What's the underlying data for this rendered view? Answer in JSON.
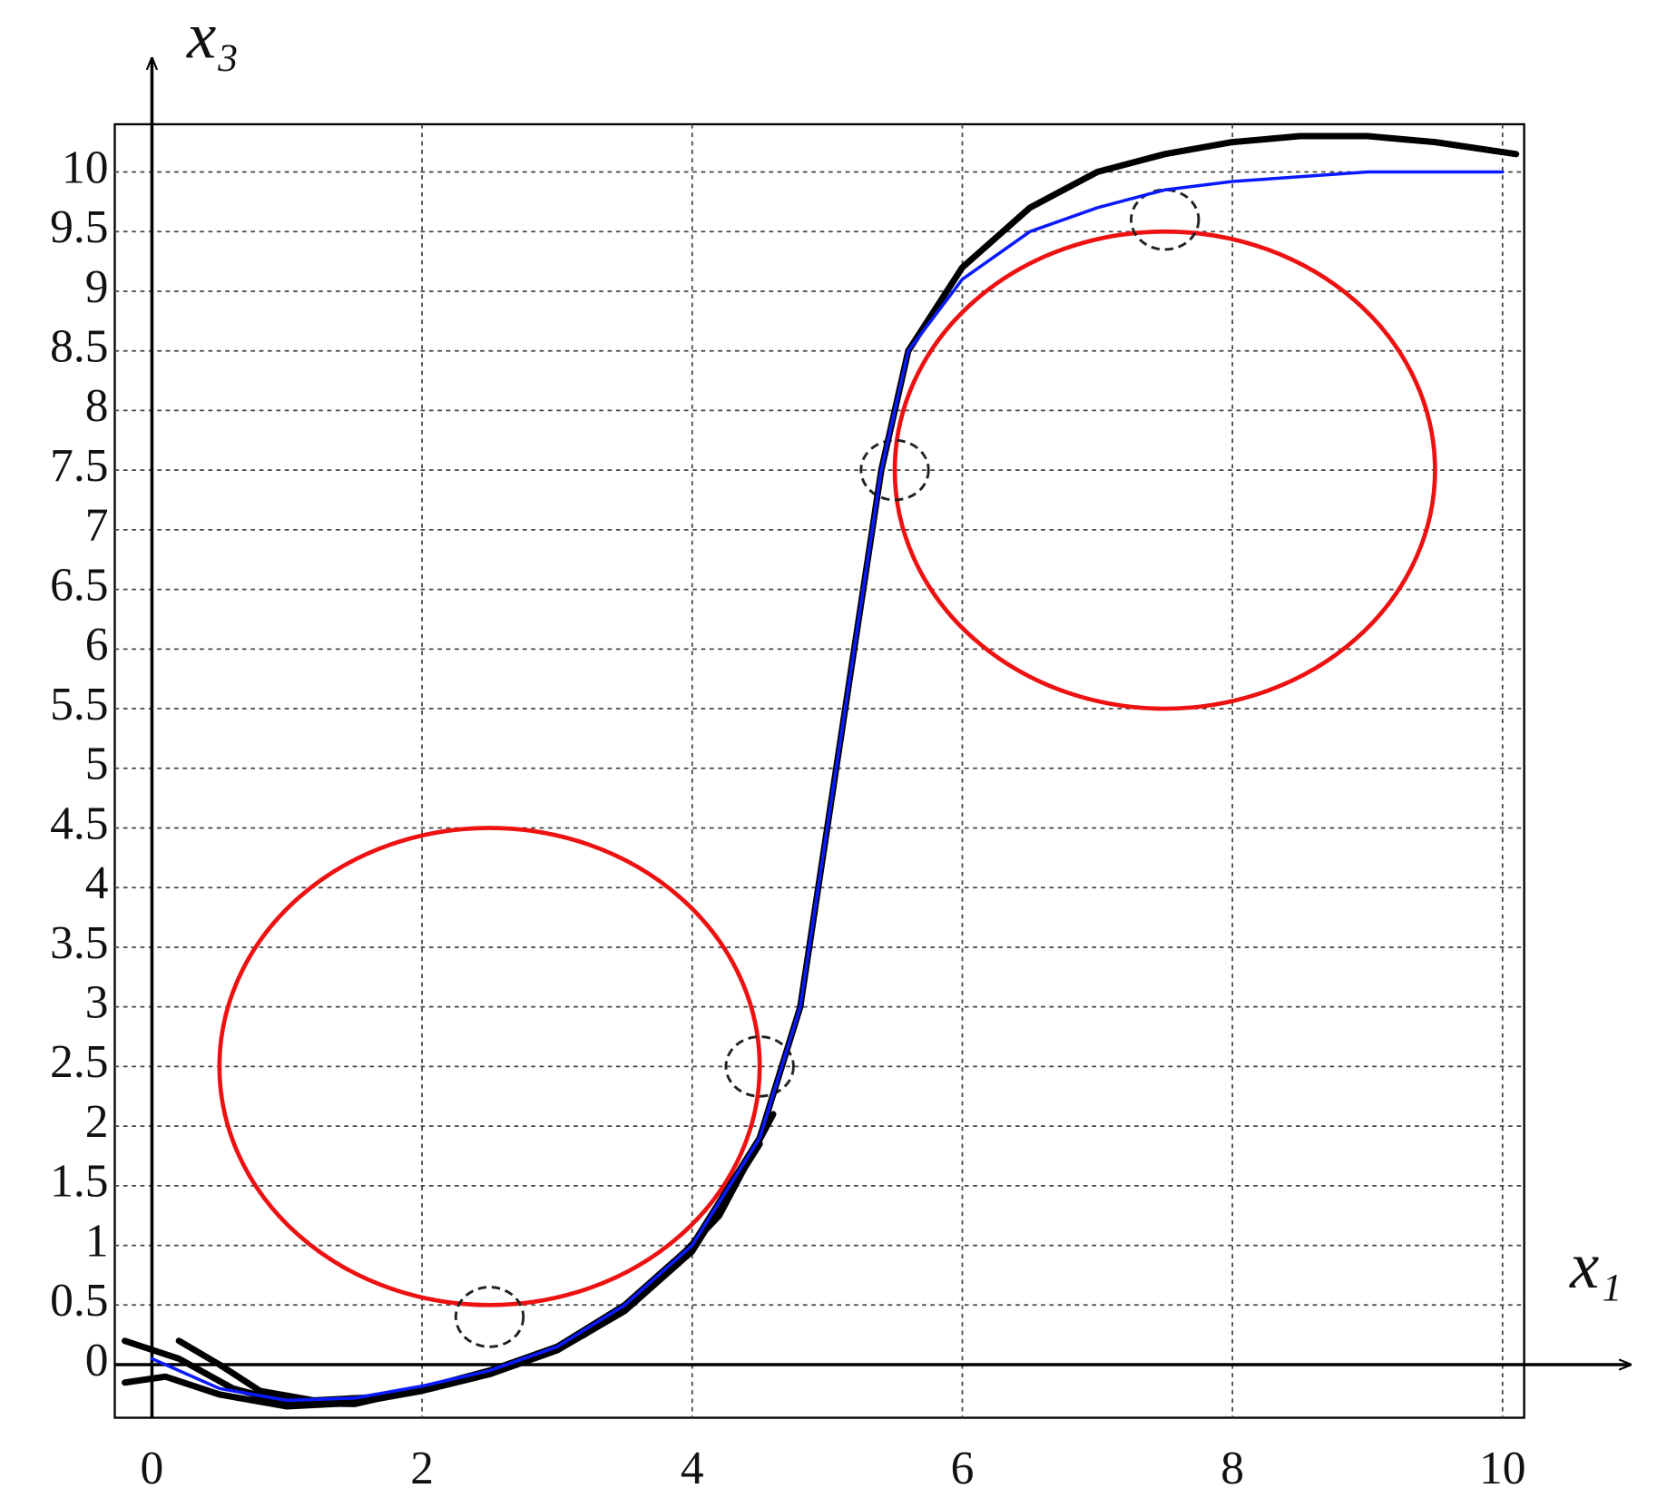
{
  "chart_data": {
    "type": "line",
    "x_label": "x₁",
    "y_label": "x₃",
    "xlim": [
      -0.275,
      10.16
    ],
    "ylim": [
      -0.445,
      10.4
    ],
    "xticks": [
      0,
      2,
      4,
      6,
      8,
      10
    ],
    "yticks": [
      0,
      0.5,
      1,
      1.5,
      2,
      2.5,
      3,
      3.5,
      4,
      4.5,
      5,
      5.5,
      6,
      6.5,
      7,
      7.5,
      8,
      8.5,
      9,
      9.5,
      10
    ],
    "grid": true,
    "series": [
      {
        "color": "#0a1aff",
        "width": 3,
        "x": [
          0,
          0.5,
          1,
          1.5,
          2,
          2.5,
          3,
          3.5,
          4,
          4.5,
          4.8,
          5,
          5.2,
          5.4,
          5.6,
          6,
          6.5,
          7,
          7.5,
          8,
          9,
          10
        ],
        "values": [
          0.05,
          -0.2,
          -0.3,
          -0.28,
          -0.18,
          -0.05,
          0.15,
          0.5,
          1.0,
          1.9,
          3.0,
          4.5,
          6,
          7.5,
          8.5,
          9.1,
          9.5,
          9.7,
          9.85,
          9.92,
          10,
          10
        ]
      },
      {
        "color": "#000000",
        "width": 6,
        "x": [
          -0.2,
          0.2,
          0.6,
          1,
          1.5,
          2,
          2.5,
          3,
          3.5,
          4,
          4.5,
          4.8,
          5,
          5.2,
          5.4,
          5.6,
          6,
          6.5,
          7,
          7.5,
          8,
          8.5,
          9,
          9.5,
          10.1
        ],
        "values": [
          0.2,
          0.05,
          -0.2,
          -0.32,
          -0.33,
          -0.2,
          -0.05,
          0.15,
          0.5,
          1.0,
          1.9,
          3.0,
          4.5,
          6,
          7.5,
          8.5,
          9.2,
          9.7,
          10,
          10.15,
          10.25,
          10.3,
          10.3,
          10.25,
          10.15
        ]
      },
      {
        "color": "#000000",
        "width": 6,
        "x": [
          -0.2,
          0.1,
          0.5,
          1,
          1.5,
          2,
          2.5,
          3,
          3.5,
          4,
          4.5
        ],
        "values": [
          -0.15,
          -0.1,
          -0.25,
          -0.35,
          -0.32,
          -0.22,
          -0.08,
          0.12,
          0.45,
          0.95,
          1.85
        ]
      },
      {
        "color": "#000000",
        "width": 6,
        "x": [
          0.2,
          0.5,
          0.8,
          1.2,
          1.7,
          2.2,
          2.7,
          3.2,
          3.7,
          4.2,
          4.6
        ],
        "values": [
          0.2,
          0.0,
          -0.22,
          -0.3,
          -0.27,
          -0.15,
          0.0,
          0.25,
          0.65,
          1.25,
          2.1
        ]
      }
    ],
    "obstacles": [
      {
        "cx": 2.5,
        "cy": 2.5,
        "r": 2,
        "color": "#ee1111"
      },
      {
        "cx": 7.5,
        "cy": 7.5,
        "r": 2,
        "color": "#ee1111"
      }
    ],
    "safety_circles": [
      {
        "cx": 2.5,
        "cy": 0.4,
        "r": 0.25
      },
      {
        "cx": 4.5,
        "cy": 2.5,
        "r": 0.25
      },
      {
        "cx": 5.5,
        "cy": 7.5,
        "r": 0.25
      },
      {
        "cx": 7.5,
        "cy": 9.6,
        "r": 0.25
      }
    ]
  }
}
